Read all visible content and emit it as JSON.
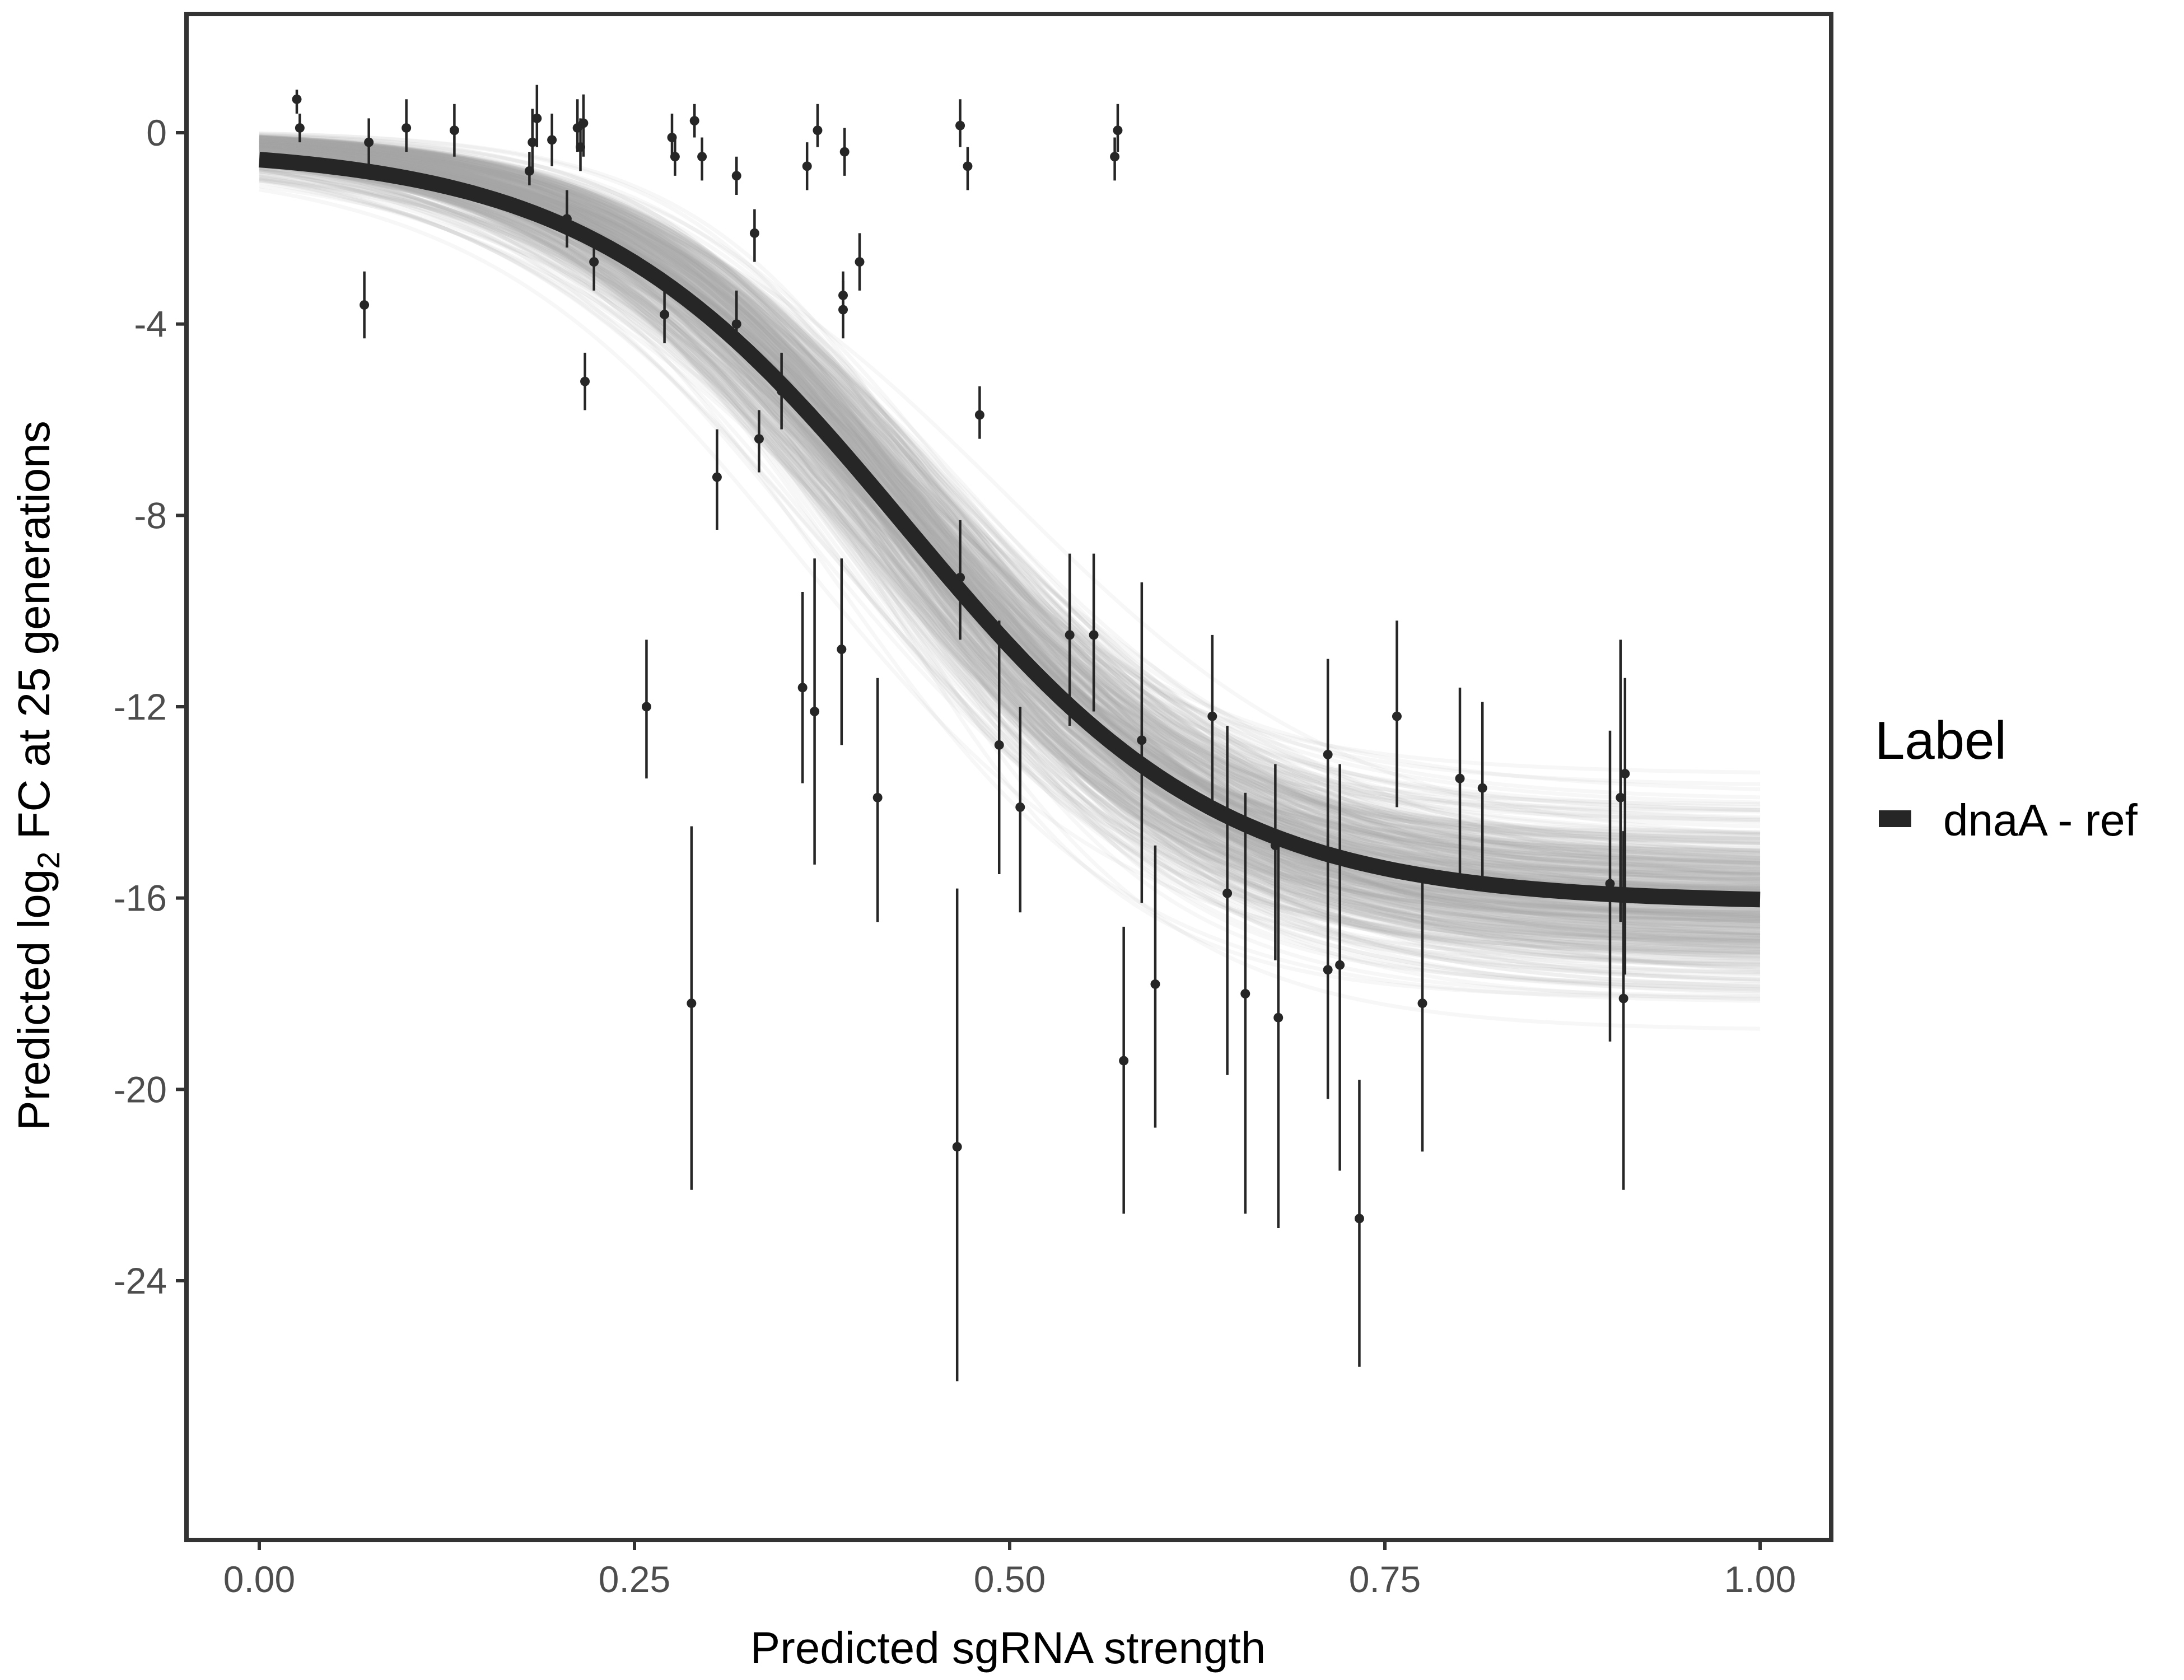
{
  "chart_data": {
    "type": "scatter",
    "xlabel": "Predicted sgRNA strength",
    "ylabel_parts": [
      "Predicted  log",
      "2",
      " FC at 25 generations"
    ],
    "xlim": [
      -0.1,
      1.12
    ],
    "ylim": [
      -29.5,
      2.5
    ],
    "xticks": [
      0.0,
      0.25,
      0.5,
      0.75,
      1.0
    ],
    "xtick_labels": [
      "0.00",
      "0.25",
      "0.50",
      "0.75",
      "1.00"
    ],
    "yticks": [
      0,
      -4,
      -8,
      -12,
      -16,
      -20,
      -24
    ],
    "ytick_labels": [
      "0",
      "-4",
      "-8",
      "-12",
      "-16",
      "-20",
      "-24"
    ],
    "grid": false,
    "legend": {
      "title": "Label",
      "position": "right",
      "entries": [
        {
          "label": "dnaA - ref",
          "color": "#262626"
        }
      ]
    },
    "colors": {
      "fit_line": "#262626",
      "points": "#262626",
      "band": "#a8a8a8",
      "frame": "#333333"
    },
    "fit_curve": {
      "model": "logistic",
      "upper": 0.0,
      "lower": -16.1,
      "midpoint": 0.43,
      "slope": 9.5,
      "x_range": [
        0.0,
        1.0
      ]
    },
    "series": [
      {
        "name": "dnaA - ref",
        "points": [
          {
            "x": 0.025,
            "y": 0.7,
            "lo": 0.4,
            "hi": 0.9
          },
          {
            "x": 0.027,
            "y": 0.1,
            "lo": -0.2,
            "hi": 0.4
          },
          {
            "x": 0.07,
            "y": -3.6,
            "lo": -4.3,
            "hi": -2.9
          },
          {
            "x": 0.073,
            "y": -0.2,
            "lo": -0.7,
            "hi": 0.3
          },
          {
            "x": 0.098,
            "y": 0.1,
            "lo": -0.4,
            "hi": 0.7
          },
          {
            "x": 0.13,
            "y": 0.05,
            "lo": -0.5,
            "hi": 0.6
          },
          {
            "x": 0.18,
            "y": -0.8,
            "lo": -1.1,
            "hi": -0.4
          },
          {
            "x": 0.182,
            "y": -0.2,
            "lo": -0.8,
            "hi": 0.5
          },
          {
            "x": 0.185,
            "y": 0.3,
            "lo": -0.3,
            "hi": 1.0
          },
          {
            "x": 0.195,
            "y": -0.15,
            "lo": -0.7,
            "hi": 0.4
          },
          {
            "x": 0.205,
            "y": -1.8,
            "lo": -2.4,
            "hi": -1.2
          },
          {
            "x": 0.212,
            "y": 0.1,
            "lo": -0.4,
            "hi": 0.7
          },
          {
            "x": 0.214,
            "y": -0.3,
            "lo": -0.8,
            "hi": 0.3
          },
          {
            "x": 0.216,
            "y": 0.2,
            "lo": -0.5,
            "hi": 0.8
          },
          {
            "x": 0.217,
            "y": -5.2,
            "lo": -5.8,
            "hi": -4.6
          },
          {
            "x": 0.223,
            "y": -2.7,
            "lo": -3.3,
            "hi": -2.1
          },
          {
            "x": 0.258,
            "y": -12.0,
            "lo": -13.5,
            "hi": -10.6
          },
          {
            "x": 0.27,
            "y": -3.8,
            "lo": -4.4,
            "hi": -3.2
          },
          {
            "x": 0.275,
            "y": -0.1,
            "lo": -0.5,
            "hi": 0.4
          },
          {
            "x": 0.277,
            "y": -0.5,
            "lo": -0.9,
            "hi": -0.1
          },
          {
            "x": 0.288,
            "y": -18.2,
            "lo": -22.1,
            "hi": -14.5
          },
          {
            "x": 0.29,
            "y": 0.25,
            "lo": -0.1,
            "hi": 0.6
          },
          {
            "x": 0.295,
            "y": -0.5,
            "lo": -1.0,
            "hi": -0.1
          },
          {
            "x": 0.305,
            "y": -7.2,
            "lo": -8.3,
            "hi": -6.2
          },
          {
            "x": 0.318,
            "y": -4.0,
            "lo": -4.3,
            "hi": -3.3
          },
          {
            "x": 0.318,
            "y": -0.9,
            "lo": -1.3,
            "hi": -0.5
          },
          {
            "x": 0.33,
            "y": -2.1,
            "lo": -2.7,
            "hi": -1.6
          },
          {
            "x": 0.333,
            "y": -6.4,
            "lo": -7.1,
            "hi": -5.8
          },
          {
            "x": 0.348,
            "y": -5.4,
            "lo": -6.2,
            "hi": -4.6
          },
          {
            "x": 0.362,
            "y": -11.6,
            "lo": -13.6,
            "hi": -9.6
          },
          {
            "x": 0.365,
            "y": -0.7,
            "lo": -1.2,
            "hi": -0.2
          },
          {
            "x": 0.37,
            "y": -12.1,
            "lo": -15.3,
            "hi": -8.9
          },
          {
            "x": 0.372,
            "y": 0.05,
            "lo": -0.3,
            "hi": 0.6
          },
          {
            "x": 0.388,
            "y": -10.8,
            "lo": -12.8,
            "hi": -8.9
          },
          {
            "x": 0.389,
            "y": -3.7,
            "lo": -4.3,
            "hi": -3.1
          },
          {
            "x": 0.389,
            "y": -3.4,
            "lo": -3.8,
            "hi": -2.9
          },
          {
            "x": 0.39,
            "y": -0.4,
            "lo": -0.9,
            "hi": 0.1
          },
          {
            "x": 0.4,
            "y": -2.7,
            "lo": -3.3,
            "hi": -2.1
          },
          {
            "x": 0.412,
            "y": -13.9,
            "lo": -16.5,
            "hi": -11.4
          },
          {
            "x": 0.465,
            "y": -21.2,
            "lo": -26.1,
            "hi": -15.8
          },
          {
            "x": 0.467,
            "y": 0.15,
            "lo": -0.3,
            "hi": 0.7
          },
          {
            "x": 0.467,
            "y": -9.3,
            "lo": -10.6,
            "hi": -8.1
          },
          {
            "x": 0.472,
            "y": -0.7,
            "lo": -1.2,
            "hi": -0.3
          },
          {
            "x": 0.48,
            "y": -5.9,
            "lo": -6.4,
            "hi": -5.3
          },
          {
            "x": 0.493,
            "y": -12.8,
            "lo": -15.5,
            "hi": -10.2
          },
          {
            "x": 0.507,
            "y": -14.1,
            "lo": -16.3,
            "hi": -12.0
          },
          {
            "x": 0.54,
            "y": -10.5,
            "lo": -12.4,
            "hi": -8.8
          },
          {
            "x": 0.556,
            "y": -10.5,
            "lo": -12.1,
            "hi": -8.8
          },
          {
            "x": 0.57,
            "y": -0.5,
            "lo": -1.0,
            "hi": -0.1
          },
          {
            "x": 0.572,
            "y": 0.05,
            "lo": -0.4,
            "hi": 0.6
          },
          {
            "x": 0.576,
            "y": -19.4,
            "lo": -22.6,
            "hi": -16.6
          },
          {
            "x": 0.588,
            "y": -12.7,
            "lo": -16.1,
            "hi": -9.4
          },
          {
            "x": 0.597,
            "y": -17.8,
            "lo": -20.8,
            "hi": -14.9
          },
          {
            "x": 0.635,
            "y": -12.2,
            "lo": -14.1,
            "hi": -10.5
          },
          {
            "x": 0.645,
            "y": -15.9,
            "lo": -19.7,
            "hi": -12.4
          },
          {
            "x": 0.657,
            "y": -18.0,
            "lo": -22.6,
            "hi": -13.8
          },
          {
            "x": 0.677,
            "y": -14.9,
            "lo": -17.3,
            "hi": -13.2
          },
          {
            "x": 0.679,
            "y": -18.5,
            "lo": -22.9,
            "hi": -14.9
          },
          {
            "x": 0.712,
            "y": -13.0,
            "lo": -15.1,
            "hi": -11.0
          },
          {
            "x": 0.712,
            "y": -17.5,
            "lo": -20.2,
            "hi": -14.7
          },
          {
            "x": 0.72,
            "y": -17.4,
            "lo": -21.7,
            "hi": -13.2
          },
          {
            "x": 0.733,
            "y": -22.7,
            "lo": -25.8,
            "hi": -19.8
          },
          {
            "x": 0.758,
            "y": -12.2,
            "lo": -14.1,
            "hi": -10.2
          },
          {
            "x": 0.775,
            "y": -18.2,
            "lo": -21.3,
            "hi": -15.5
          },
          {
            "x": 0.8,
            "y": -13.5,
            "lo": -15.7,
            "hi": -11.6
          },
          {
            "x": 0.815,
            "y": -13.7,
            "lo": -15.6,
            "hi": -11.9
          },
          {
            "x": 0.9,
            "y": -15.7,
            "lo": -19.0,
            "hi": -12.5
          },
          {
            "x": 0.907,
            "y": -13.9,
            "lo": -16.5,
            "hi": -10.6
          },
          {
            "x": 0.909,
            "y": -18.1,
            "lo": -22.1,
            "hi": -14.6
          },
          {
            "x": 0.91,
            "y": -13.4,
            "lo": -17.6,
            "hi": -11.4
          }
        ]
      }
    ]
  }
}
